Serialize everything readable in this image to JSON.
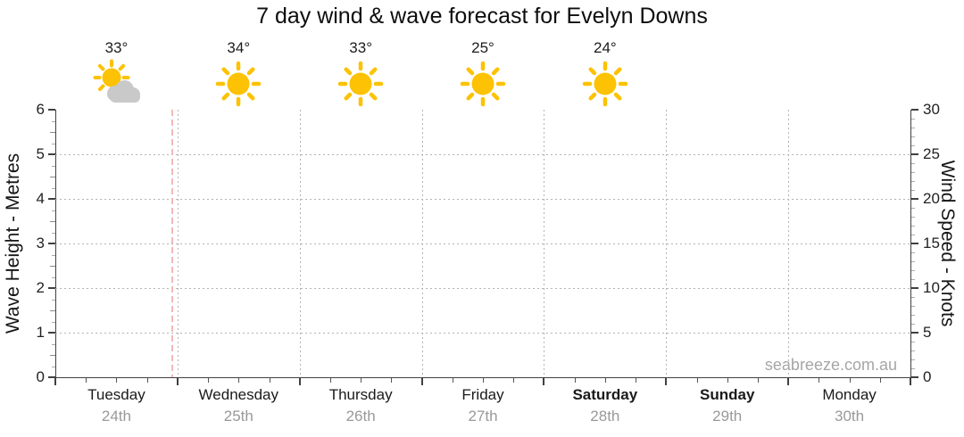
{
  "title": "7 day wind & wave forecast for Evelyn Downs",
  "watermark": "seabreeze.com.au",
  "chart_data": {
    "type": "line",
    "title": "7 day wind & wave forecast for Evelyn Downs",
    "series": [],
    "note_visible_content": "empty plot area - no wave or wind curves drawn, gridlines only",
    "left_axis": {
      "label": "Wave Height - Metres",
      "min": 0,
      "max": 6,
      "major_step": 1,
      "minor_step": 0.25,
      "ticks": [
        0,
        1,
        2,
        3,
        4,
        5,
        6
      ]
    },
    "right_axis": {
      "label": "Wind Speed - Knots",
      "min": 0,
      "max": 30,
      "major_step": 5,
      "minor_step": 1,
      "ticks": [
        0,
        5,
        10,
        15,
        20,
        25,
        30
      ]
    },
    "days": [
      {
        "name": "Tuesday",
        "date": "24th",
        "weekend": false,
        "temp": "33°",
        "icon": "sun-cloud"
      },
      {
        "name": "Wednesday",
        "date": "25th",
        "weekend": false,
        "temp": "34°",
        "icon": "sun"
      },
      {
        "name": "Thursday",
        "date": "26th",
        "weekend": false,
        "temp": "33°",
        "icon": "sun"
      },
      {
        "name": "Friday",
        "date": "27th",
        "weekend": false,
        "temp": "25°",
        "icon": "sun"
      },
      {
        "name": "Saturday",
        "date": "28th",
        "weekend": true,
        "temp": "24°",
        "icon": "sun"
      },
      {
        "name": "Sunday",
        "date": "29th",
        "weekend": true,
        "temp": null,
        "icon": null
      },
      {
        "name": "Monday",
        "date": "30th",
        "weekend": false,
        "temp": null,
        "icon": null
      }
    ],
    "now_marker": {
      "day_index": 0,
      "day_fraction": 0.96
    },
    "grid": true,
    "colors": {
      "sun": "#FCC203",
      "cloud": "#C9C9C9",
      "grid": "#b3b3b3",
      "axis": "#404040",
      "now_line": "#f5b7b7",
      "day_text": "#1a1a1a",
      "date_text": "#999999",
      "tick_text": "#222222",
      "watermark": "#a6a6a6"
    }
  }
}
